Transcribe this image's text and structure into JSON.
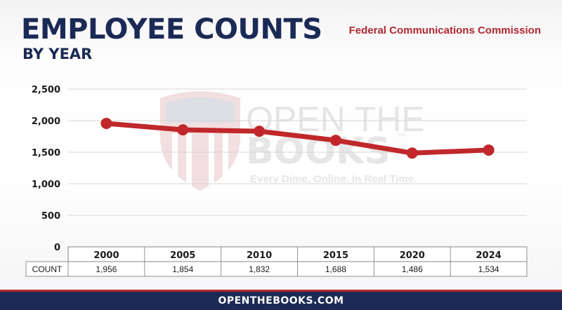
{
  "header": {
    "title": "EMPLOYEE COUNTS",
    "subtitle": "BY YEAR",
    "agency": "Federal Communications Commission"
  },
  "watermark": {
    "line1": "OPEN THE",
    "line2": "BOOKS",
    "tm": "™",
    "tagline": "Every Dime. Online. In Real Time."
  },
  "footer": {
    "text": "OPENTHEBOOKS.COM"
  },
  "colors": {
    "navy": "#1b2a55",
    "accent": "#b0282e",
    "line": "#c0282b"
  },
  "chart_data": {
    "type": "line",
    "categories": [
      "2000",
      "2005",
      "2010",
      "2015",
      "2020",
      "2024"
    ],
    "values": [
      1956,
      1854,
      1832,
      1688,
      1486,
      1534
    ],
    "value_labels": [
      "1,956",
      "1,854",
      "1,832",
      "1,688",
      "1,486",
      "1,534"
    ],
    "yticks": [
      "0",
      "500",
      "1,000",
      "1,500",
      "2,000",
      "2,500"
    ],
    "ylim": [
      0,
      2500
    ],
    "table_row_label": "COUNT",
    "grid": true
  }
}
